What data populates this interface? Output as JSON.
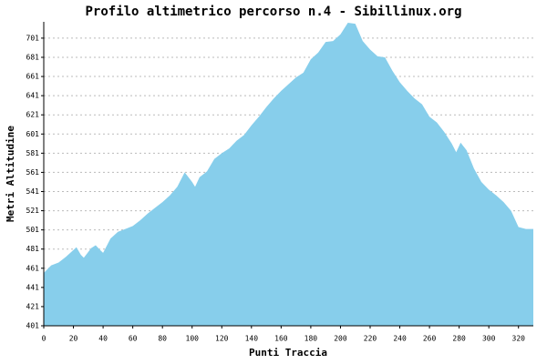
{
  "chart_data": {
    "type": "area",
    "title": "Profilo altimetrico percorso n.4 - Sibillinux.org",
    "x_label": "Punti Traccia",
    "y_label": "Metri Altitudine",
    "color": "#87ceeb",
    "grid": true,
    "x": [
      0,
      5,
      10,
      15,
      20,
      22,
      25,
      27,
      32,
      35,
      38,
      40,
      45,
      50,
      55,
      60,
      65,
      70,
      75,
      80,
      85,
      90,
      95,
      100,
      102,
      105,
      110,
      115,
      120,
      125,
      130,
      135,
      140,
      145,
      150,
      155,
      160,
      165,
      170,
      175,
      180,
      185,
      190,
      195,
      200,
      205,
      210,
      215,
      220,
      225,
      230,
      235,
      240,
      245,
      250,
      255,
      260,
      265,
      270,
      275,
      278,
      281,
      285,
      290,
      295,
      300,
      305,
      310,
      315,
      320,
      325,
      330
    ],
    "values": [
      456,
      464,
      467,
      473,
      480,
      483,
      475,
      472,
      482,
      485,
      480,
      477,
      492,
      499,
      502,
      505,
      511,
      518,
      524,
      530,
      537,
      546,
      561,
      551,
      546,
      556,
      562,
      575,
      581,
      586,
      594,
      600,
      610,
      619,
      629,
      638,
      646,
      653,
      660,
      665,
      679,
      686,
      697,
      698,
      705,
      717,
      716,
      698,
      689,
      682,
      681,
      667,
      655,
      646,
      638,
      632,
      619,
      613,
      603,
      591,
      582,
      592,
      584,
      565,
      551,
      543,
      537,
      530,
      521,
      504,
      502,
      502
    ],
    "xlim": [
      0,
      330
    ],
    "ylim": [
      401,
      718
    ],
    "xticks": [
      0,
      20,
      40,
      60,
      80,
      100,
      120,
      140,
      160,
      180,
      200,
      220,
      240,
      260,
      280,
      300,
      320
    ],
    "yticks": [
      401,
      421,
      441,
      461,
      481,
      501,
      521,
      541,
      561,
      581,
      601,
      621,
      641,
      661,
      681,
      701
    ]
  }
}
